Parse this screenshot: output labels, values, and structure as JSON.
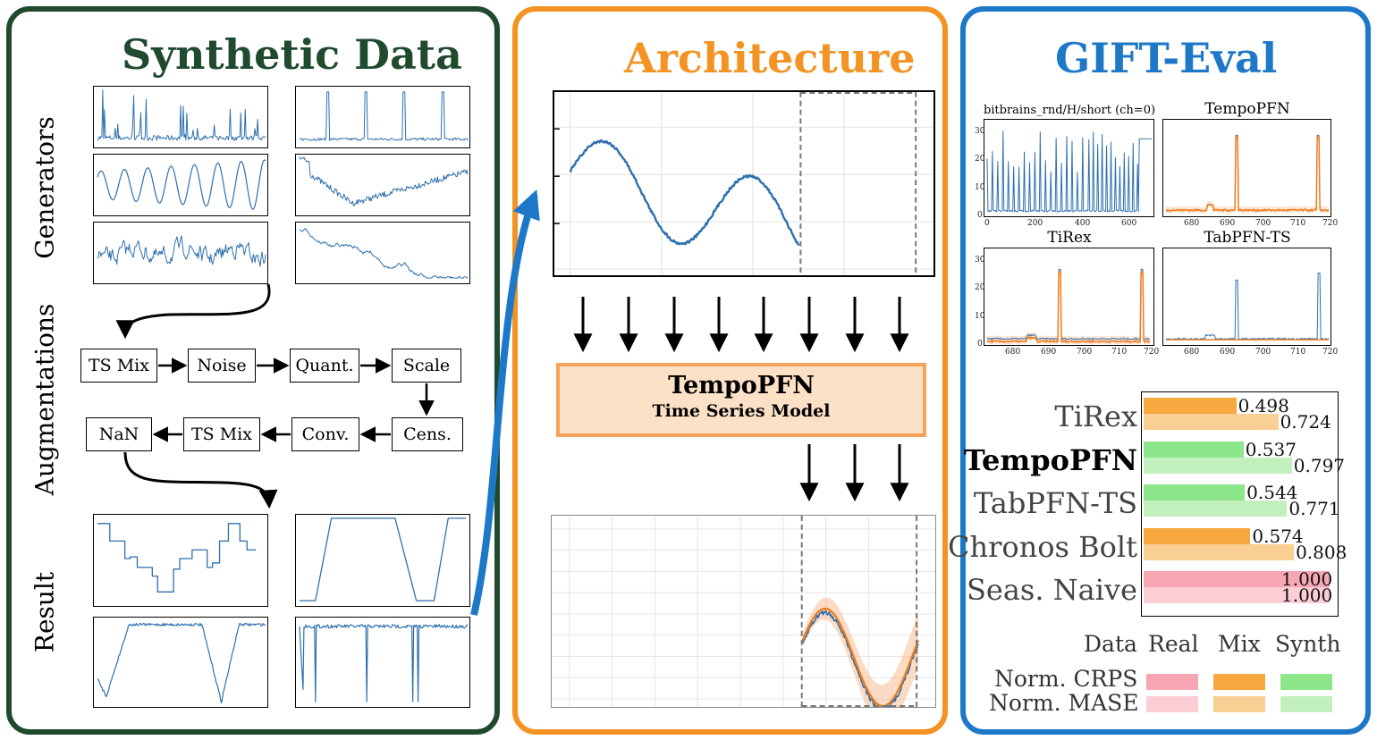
{
  "panels": {
    "synthetic": {
      "title": "Synthetic Data",
      "labels": {
        "generators": "Generators",
        "augmentations": "Augmentations",
        "result": "Result"
      },
      "augment_steps": {
        "row1": [
          "TS Mix",
          "Noise",
          "Quant.",
          "Scale"
        ],
        "row2": [
          "NaN",
          "TS Mix",
          "Conv.",
          "Cens."
        ]
      }
    },
    "architecture": {
      "title": "Architecture",
      "model_name": "TempoPFN",
      "model_subtitle": "Time Series Model"
    },
    "gift_eval": {
      "title": "GIFT-Eval",
      "plot_titles": {
        "data": "bitbrains_rnd/H/short (ch=0)",
        "tempopfn": "TempoPFN",
        "tirex": "TiRex",
        "tabpfn": "TabPFN-TS"
      },
      "ticks": {
        "y": [
          "30",
          "20",
          "10",
          "0"
        ],
        "x_data": [
          "0",
          "200",
          "400",
          "600"
        ],
        "x_forecast": [
          "680",
          "690",
          "700",
          "710",
          "720"
        ]
      },
      "legend": {
        "data_label": "Data",
        "real": "Real",
        "mix": "Mix",
        "synth": "Synth",
        "crps": "Norm. CRPS",
        "mase": "Norm. MASE"
      }
    }
  },
  "chart_data": {
    "type": "bar",
    "categories": [
      "TiRex",
      "TempoPFN",
      "TabPFN-TS",
      "Chronos Bolt",
      "Seas. Naive"
    ],
    "highlight": "TempoPFN",
    "series": [
      {
        "name": "Norm. CRPS",
        "values": [
          0.498,
          0.537,
          0.544,
          0.574,
          1.0
        ],
        "labels": [
          "0.498",
          "0.537",
          "0.544",
          "0.574",
          "1.000"
        ]
      },
      {
        "name": "Norm. MASE",
        "values": [
          0.724,
          0.797,
          0.771,
          0.808,
          1.0
        ],
        "labels": [
          "0.724",
          "0.797",
          "0.771",
          "0.808",
          "1.000"
        ]
      }
    ],
    "training_data": [
      "Mix",
      "Synth",
      "Synth",
      "Mix",
      "Real"
    ],
    "xlim": [
      0,
      1.0
    ],
    "colors": {
      "real": {
        "crps": "#f7a6b4",
        "mase": "#fbcdd5"
      },
      "mix": {
        "crps": "#f7a83e",
        "mase": "#f9cf94"
      },
      "synth": {
        "crps": "#8ee68a",
        "mase": "#c2f0bd"
      }
    }
  },
  "colors": {
    "synthetic_border": "#1f4a2e",
    "architecture_border": "#f39324",
    "gift_border": "#1e78c8",
    "series_blue": "#2c6fad",
    "forecast_orange": "#f07a1a"
  }
}
